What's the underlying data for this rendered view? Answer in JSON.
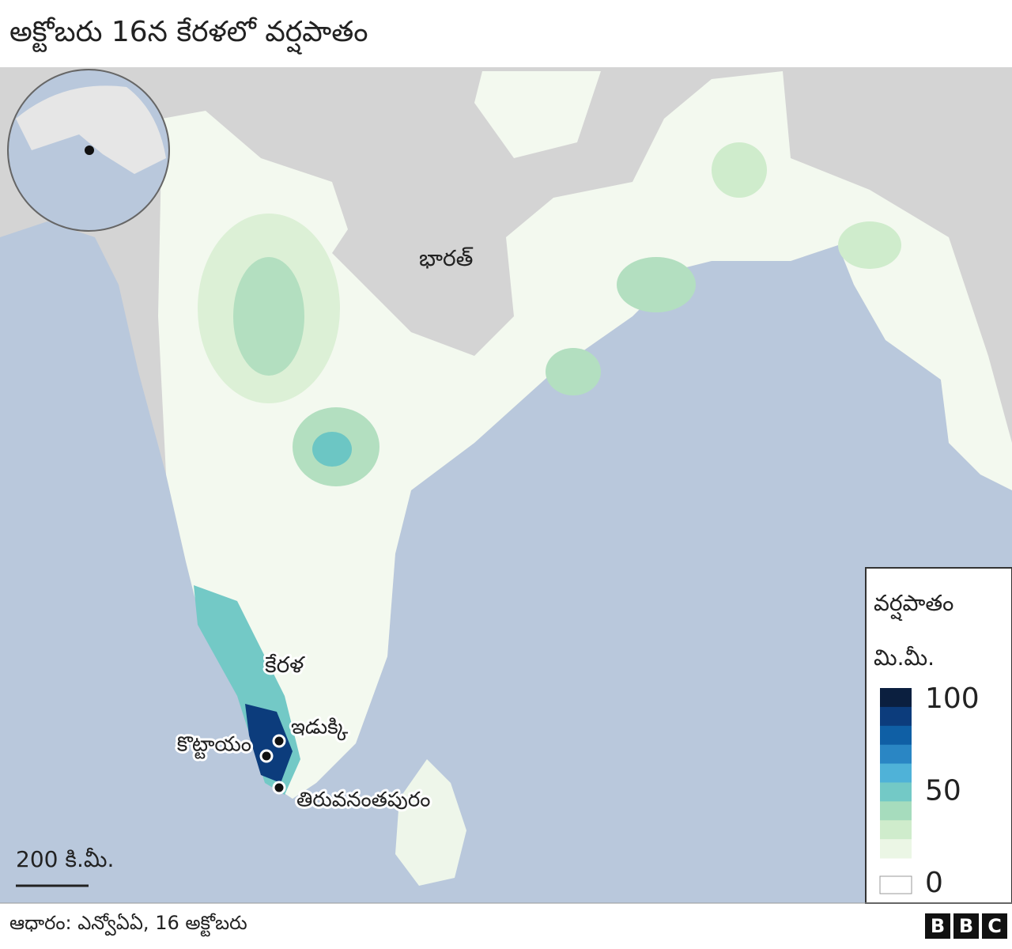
{
  "header": {
    "title": "అక్టోబరు 16న కేరళలో వర్షపాతం"
  },
  "map": {
    "labels": {
      "country": "భారత్",
      "state": "కేరళ",
      "idukki": "ఇడుక్కి",
      "kottayam": "కొట్టాయం",
      "trivandrum": "తిరువనంతపురం"
    },
    "scale": "200 కి.మీ."
  },
  "legend": {
    "title": "వర్షపాతం",
    "unit": "మి.మీ.",
    "ticks": [
      100,
      50,
      0
    ],
    "colors": [
      "#0b1f3f",
      "#0c3c7c",
      "#0f5fa5",
      "#2a86c4",
      "#4fb2d8",
      "#73c9c6",
      "#a6dcbd",
      "#cfeccc",
      "#ebf6e5"
    ]
  },
  "footer": {
    "source": "ఆధారం: ఎన్వోఏఏ, 16 అక్టోబరు",
    "logo": [
      "B",
      "B",
      "C"
    ]
  }
}
